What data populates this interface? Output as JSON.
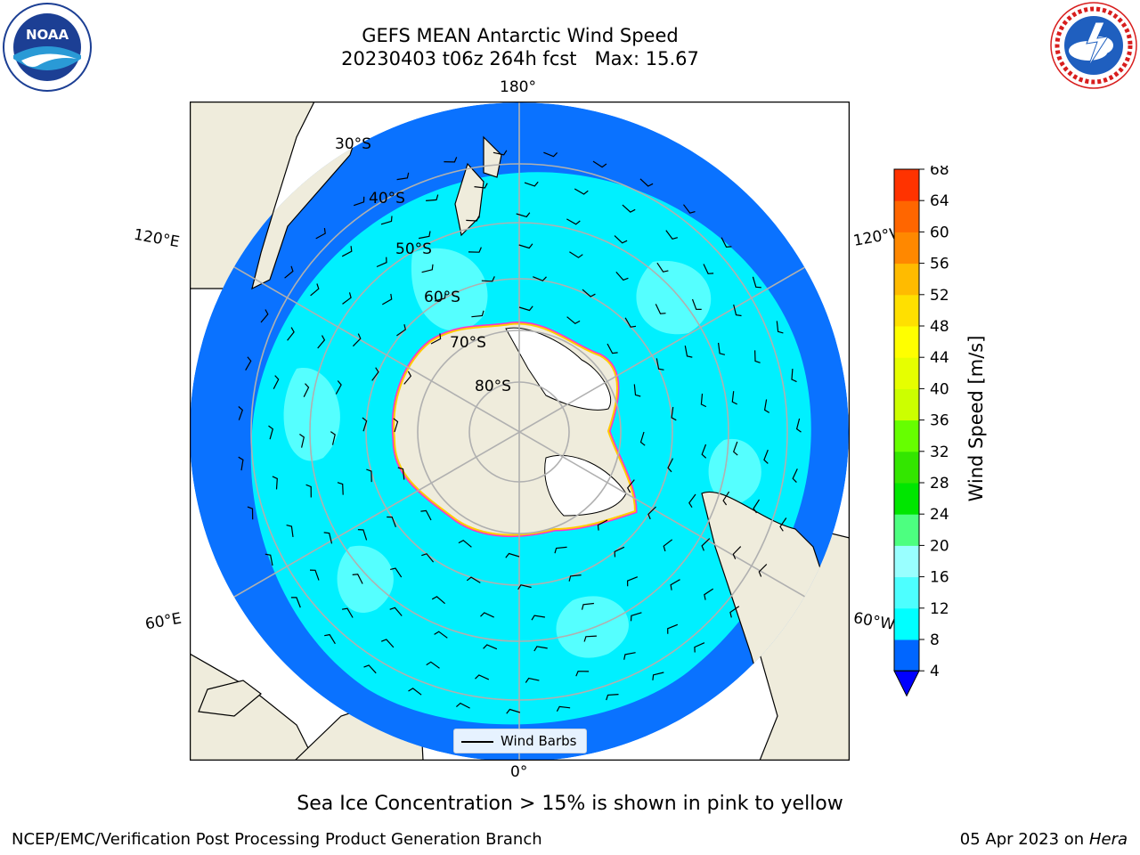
{
  "header": {
    "title_line1": "GEFS MEAN Antarctic Wind Speed",
    "title_line2": "20230403 t06z 264h fcst   Max: 15.67"
  },
  "logos": {
    "noaa_text": "NOAA",
    "noaa_ring_text": "NATIONAL OCEANIC AND ATMOSPHERIC ADMINISTRATION · U.S. DEPARTMENT OF COMMERCE",
    "nws_ring_text": "NATIONAL WEATHER SERVICE"
  },
  "map": {
    "projection": "south-polar-stereographic",
    "longitude_labels": {
      "top": "180°",
      "bottom": "0°",
      "left_upper": "120°E",
      "left_lower": "60°E",
      "right_upper": "120°W",
      "right_lower": "60°W"
    },
    "latitude_labels": [
      "30°S",
      "40°S",
      "50°S",
      "60°S",
      "70°S",
      "80°S"
    ],
    "colors": {
      "land": "#efecdc",
      "ice_free_land": "#ffffff",
      "grid": "#b0b0b0",
      "sea_ice_edge": [
        "#ff33cc",
        "#ffcc00"
      ]
    }
  },
  "colorbar": {
    "label": "Wind Speed [m/s]",
    "ticks": [
      "4",
      "8",
      "12",
      "16",
      "20",
      "24",
      "28",
      "32",
      "36",
      "40",
      "44",
      "48",
      "52",
      "56",
      "60",
      "64",
      "68"
    ],
    "colors": [
      "#0066ff",
      "#00ffff",
      "#4dffff",
      "#99ffff",
      "#4dff80",
      "#00e600",
      "#33e600",
      "#66ff00",
      "#ccff00",
      "#e6ff00",
      "#ffff00",
      "#ffe000",
      "#ffbb00",
      "#ff8800",
      "#ff6600",
      "#ff3300",
      "#ff0000"
    ],
    "extend_color": "#0000ff"
  },
  "legend": {
    "label": "Wind Barbs"
  },
  "note": "Sea Ice Concentration > 15% is shown in pink to yellow",
  "footer": {
    "left": "NCEP/EMC/Verification Post Processing Product Generation Branch",
    "right_date": "05 Apr 2023 on ",
    "right_host": "Hera"
  }
}
